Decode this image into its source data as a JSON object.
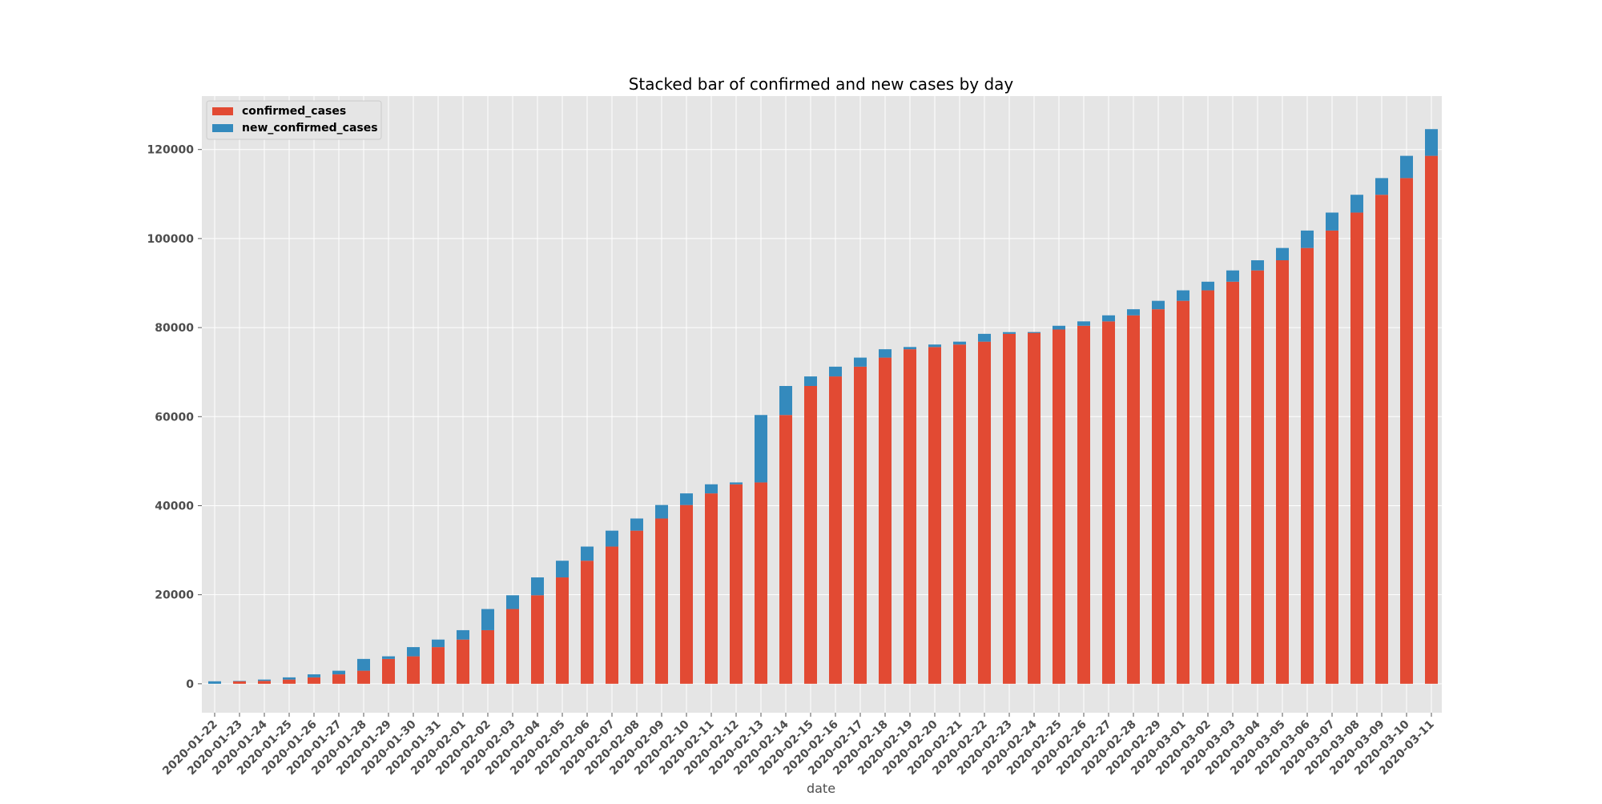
{
  "chart_data": {
    "type": "bar",
    "stacked": true,
    "title": "Stacked bar of confirmed and new cases by day",
    "xlabel": "date",
    "ylabel": "",
    "ylim": [
      -6500,
      132000
    ],
    "yticks": [
      0,
      20000,
      40000,
      60000,
      80000,
      100000,
      120000
    ],
    "ytick_labels": [
      "0",
      "20000",
      "40000",
      "60000",
      "80000",
      "100000",
      "120000"
    ],
    "grid": true,
    "legend": "top-left",
    "categories": [
      "2020-01-22",
      "2020-01-23",
      "2020-01-24",
      "2020-01-25",
      "2020-01-26",
      "2020-01-27",
      "2020-01-28",
      "2020-01-29",
      "2020-01-30",
      "2020-01-31",
      "2020-02-01",
      "2020-02-02",
      "2020-02-03",
      "2020-02-04",
      "2020-02-05",
      "2020-02-06",
      "2020-02-07",
      "2020-02-08",
      "2020-02-09",
      "2020-02-10",
      "2020-02-11",
      "2020-02-12",
      "2020-02-13",
      "2020-02-14",
      "2020-02-15",
      "2020-02-16",
      "2020-02-17",
      "2020-02-18",
      "2020-02-19",
      "2020-02-20",
      "2020-02-21",
      "2020-02-22",
      "2020-02-23",
      "2020-02-24",
      "2020-02-25",
      "2020-02-26",
      "2020-02-27",
      "2020-02-28",
      "2020-02-29",
      "2020-03-01",
      "2020-03-02",
      "2020-03-03",
      "2020-03-04",
      "2020-03-05",
      "2020-03-06",
      "2020-03-07",
      "2020-03-08",
      "2020-03-09",
      "2020-03-10",
      "2020-03-11"
    ],
    "series": [
      {
        "name": "confirmed_cases",
        "color": "#E24A33",
        "values": [
          0,
          555,
          653,
          941,
          1434,
          2118,
          2927,
          5578,
          6166,
          8234,
          9927,
          12038,
          16787,
          19881,
          23892,
          27636,
          30818,
          34392,
          37121,
          40151,
          42763,
          44803,
          45222,
          60370,
          66887,
          69032,
          71226,
          73260,
          75138,
          75641,
          76199,
          76843,
          78599,
          78985,
          79570,
          80415,
          81397,
          82756,
          84124,
          86013,
          88371,
          90309,
          92844,
          95124,
          97886,
          101800,
          105836,
          109835,
          113582,
          118582
        ]
      },
      {
        "name": "new_confirmed_cases",
        "color": "#348ABD",
        "values": [
          555,
          98,
          288,
          493,
          684,
          809,
          2651,
          588,
          2068,
          1693,
          2111,
          4749,
          3094,
          4011,
          3744,
          3182,
          3574,
          2729,
          3030,
          2612,
          2040,
          419,
          15148,
          6517,
          2145,
          2194,
          2034,
          1878,
          503,
          558,
          644,
          1756,
          386,
          -200,
          845,
          982,
          1359,
          1368,
          1889,
          2358,
          1938,
          2535,
          2280,
          2762,
          3914,
          4036,
          3999,
          3747,
          5000,
          6000
        ]
      }
    ]
  }
}
